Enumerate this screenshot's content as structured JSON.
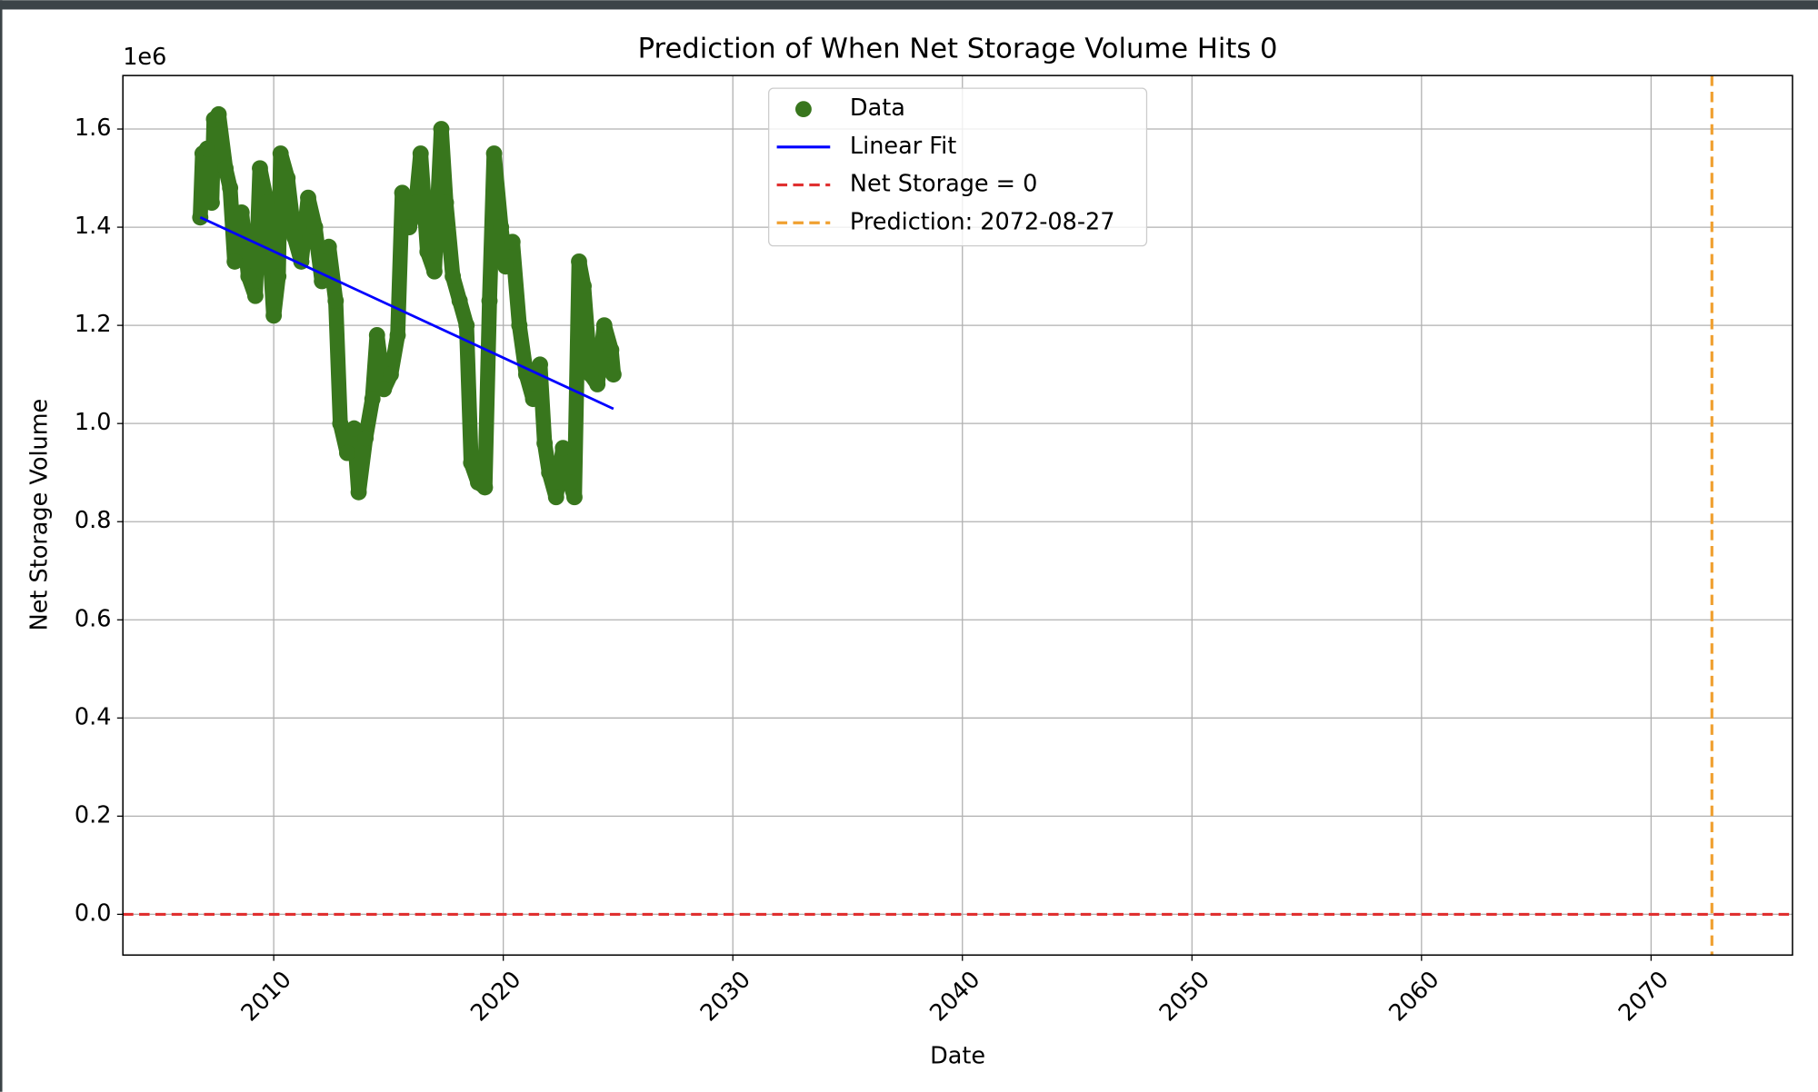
{
  "chart_data": {
    "type": "scatter",
    "title": "Prediction of When Net Storage Volume Hits 0",
    "x_label": "Date",
    "y_label": "Net Storage Volume",
    "y_offset_label": "1e6",
    "xlim": [
      2003.43,
      2076.16
    ],
    "ylim": [
      -83000,
      1709000
    ],
    "xticks": [
      2010,
      2020,
      2030,
      2040,
      2050,
      2060,
      2070
    ],
    "yticks": [
      {
        "value": 0,
        "label": "0.0"
      },
      {
        "value": 200000,
        "label": "0.2"
      },
      {
        "value": 400000,
        "label": "0.4"
      },
      {
        "value": 600000,
        "label": "0.6"
      },
      {
        "value": 800000,
        "label": "0.8"
      },
      {
        "value": 1000000,
        "label": "1.0"
      },
      {
        "value": 1200000,
        "label": "1.2"
      },
      {
        "value": 1400000,
        "label": "1.4"
      },
      {
        "value": 1600000,
        "label": "1.6"
      }
    ],
    "grid": true,
    "legend": "upper center",
    "series": [
      {
        "name": "Data",
        "kind": "scatter",
        "color": "#38761d",
        "x": [
          2006.8,
          2006.9,
          2007.1,
          2007.3,
          2007.4,
          2007.6,
          2007.9,
          2008.1,
          2008.3,
          2008.6,
          2008.9,
          2009.2,
          2009.4,
          2009.7,
          2010.0,
          2010.2,
          2010.3,
          2010.6,
          2010.9,
          2011.2,
          2011.5,
          2011.8,
          2012.1,
          2012.4,
          2012.7,
          2012.9,
          2013.2,
          2013.5,
          2013.7,
          2014.0,
          2014.3,
          2014.5,
          2014.8,
          2015.1,
          2015.4,
          2015.6,
          2015.9,
          2016.2,
          2016.4,
          2016.7,
          2017.0,
          2017.3,
          2017.5,
          2017.8,
          2018.1,
          2018.4,
          2018.6,
          2018.9,
          2019.2,
          2019.4,
          2019.6,
          2019.9,
          2020.1,
          2020.4,
          2020.7,
          2021.0,
          2021.3,
          2021.6,
          2021.8,
          2022.0,
          2022.3,
          2022.6,
          2022.9,
          2023.1,
          2023.3,
          2023.5,
          2023.8,
          2024.1,
          2024.4,
          2024.7,
          2024.8
        ],
        "values": [
          1420000,
          1550000,
          1560000,
          1450000,
          1620000,
          1630000,
          1520000,
          1480000,
          1330000,
          1430000,
          1300000,
          1260000,
          1520000,
          1450000,
          1220000,
          1300000,
          1550000,
          1500000,
          1380000,
          1330000,
          1460000,
          1400000,
          1290000,
          1360000,
          1250000,
          1000000,
          940000,
          990000,
          860000,
          970000,
          1050000,
          1180000,
          1070000,
          1100000,
          1180000,
          1470000,
          1400000,
          1450000,
          1550000,
          1350000,
          1310000,
          1600000,
          1450000,
          1300000,
          1250000,
          1200000,
          920000,
          880000,
          870000,
          1250000,
          1550000,
          1400000,
          1320000,
          1370000,
          1200000,
          1100000,
          1050000,
          1120000,
          960000,
          900000,
          850000,
          950000,
          880000,
          850000,
          1330000,
          1280000,
          1100000,
          1080000,
          1200000,
          1150000,
          1100000
        ]
      },
      {
        "name": "Linear Fit",
        "kind": "line",
        "color": "#0000ff",
        "x": [
          2006.8,
          2024.8
        ],
        "values": [
          1420000,
          1030000
        ]
      },
      {
        "name": "Net Storage = 0",
        "kind": "hline",
        "color": "#e03030",
        "value": 0
      },
      {
        "name": "Prediction: 2072-08-27",
        "kind": "vline",
        "color": "#f0a030",
        "x": 2072.65
      }
    ]
  }
}
